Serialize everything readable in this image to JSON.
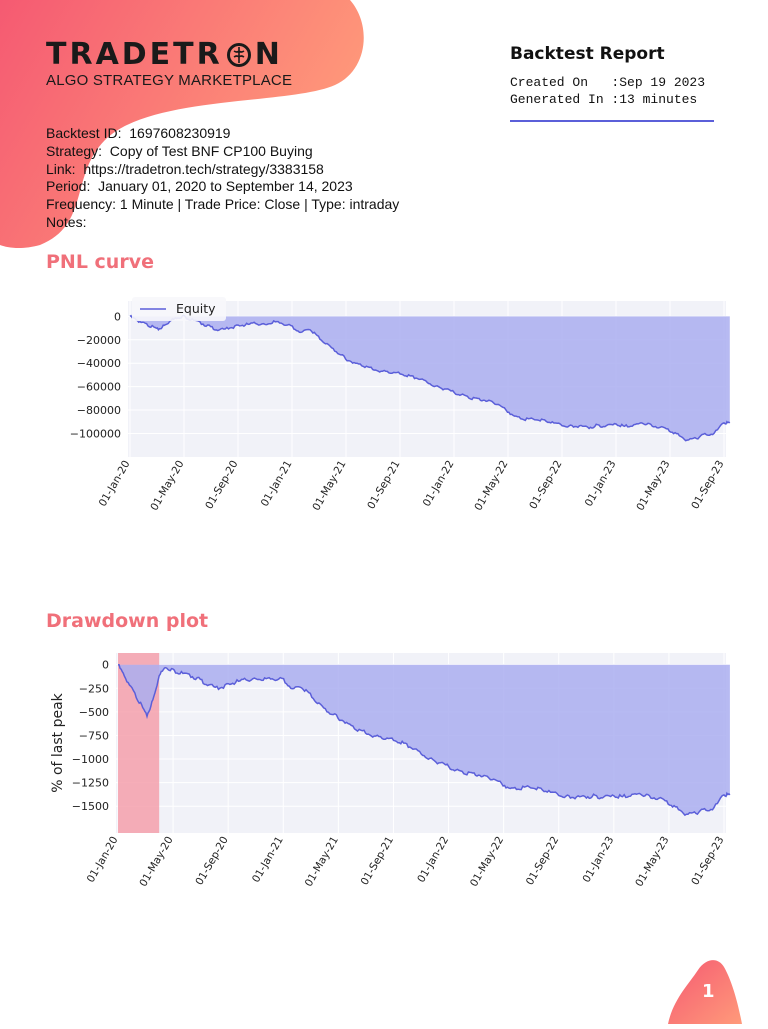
{
  "brand": {
    "logo_text_left": "TRADETR",
    "logo_text_right": "N",
    "tagline": "ALGO STRATEGY MARKETPLACE"
  },
  "report": {
    "title": "Backtest Report",
    "created_on_label": "Created On   ",
    "created_on_value": ":Sep 19 2023",
    "generated_in_label": "Generated In ",
    "generated_in_value": ":13 minutes"
  },
  "info": {
    "backtest_id": "Backtest ID:  1697608230919",
    "strategy": "Strategy:  Copy of Test BNF CP100 Buying",
    "link": "Link:  https://tradetron.tech/strategy/3383158",
    "period": "Period:  January 01, 2020 to September 14, 2023",
    "frequency": "Frequency: 1 Minute | Trade Price: Close | Type: intraday",
    "notes": "Notes:"
  },
  "sections": {
    "pnl_title": "PNL curve",
    "drawdown_title": "Drawdown plot"
  },
  "page": {
    "number": "1"
  },
  "colors": {
    "accent": "#f0707a",
    "line": "#5b5fd9",
    "fill": "#aaaef0",
    "grid_bg": "#f1f2f8",
    "drawdown_highlight": "#f4a0ab"
  },
  "chart_data": [
    {
      "type": "area",
      "title": "",
      "legend": [
        "Equity"
      ],
      "legend_placement": "top-left",
      "x_ticks": [
        "01-Jan-20",
        "01-May-20",
        "01-Sep-20",
        "01-Jan-21",
        "01-May-21",
        "01-Sep-21",
        "01-Jan-22",
        "01-May-22",
        "01-Sep-22",
        "01-Jan-23",
        "01-May-23",
        "01-Sep-23"
      ],
      "y_ticks": [
        "0",
        "−20000",
        "−40000",
        "−60000",
        "−80000",
        "−100000"
      ],
      "ylim": [
        -115000,
        8000
      ],
      "series": [
        {
          "name": "Equity",
          "x": [
            "2020-01-01",
            "2020-01-15",
            "2020-02-01",
            "2020-02-20",
            "2020-03-05",
            "2020-03-18",
            "2020-04-01",
            "2020-04-15",
            "2020-05-01",
            "2020-05-20",
            "2020-06-10",
            "2020-07-01",
            "2020-07-20",
            "2020-08-10",
            "2020-09-01",
            "2020-09-20",
            "2020-10-10",
            "2020-11-01",
            "2020-11-20",
            "2020-12-10",
            "2021-01-01",
            "2021-01-20",
            "2021-02-10",
            "2021-03-01",
            "2021-03-20",
            "2021-04-10",
            "2021-05-01",
            "2021-05-20",
            "2021-06-10",
            "2021-07-01",
            "2021-07-20",
            "2021-08-10",
            "2021-09-01",
            "2021-09-20",
            "2021-10-10",
            "2021-11-01",
            "2021-11-20",
            "2021-12-10",
            "2022-01-01",
            "2022-01-20",
            "2022-02-10",
            "2022-03-01",
            "2022-03-20",
            "2022-04-10",
            "2022-05-01",
            "2022-05-20",
            "2022-06-10",
            "2022-07-01",
            "2022-07-20",
            "2022-08-10",
            "2022-09-01",
            "2022-09-20",
            "2022-10-10",
            "2022-11-01",
            "2022-11-20",
            "2022-12-10",
            "2023-01-01",
            "2023-01-20",
            "2023-02-10",
            "2023-03-01",
            "2023-03-20",
            "2023-04-10",
            "2023-05-01",
            "2023-05-20",
            "2023-06-10",
            "2023-07-01",
            "2023-07-20",
            "2023-08-10",
            "2023-09-01",
            "2023-09-14"
          ],
          "y": [
            0,
            -3000,
            -6000,
            -9000,
            -11000,
            -8000,
            -4000,
            -1000,
            0,
            -3000,
            -6000,
            -9000,
            -12000,
            -10000,
            -8000,
            -7000,
            -6000,
            -7000,
            -5000,
            -6000,
            -9000,
            -14000,
            -11000,
            -18000,
            -24000,
            -30000,
            -36000,
            -40000,
            -42000,
            -45000,
            -47000,
            -48000,
            -49000,
            -51000,
            -53000,
            -56000,
            -60000,
            -62000,
            -65000,
            -67000,
            -70000,
            -71000,
            -72000,
            -75000,
            -81000,
            -86000,
            -88000,
            -88000,
            -89000,
            -91000,
            -93000,
            -94000,
            -94000,
            -95000,
            -93000,
            -94000,
            -92000,
            -94000,
            -93000,
            -91000,
            -93000,
            -95000,
            -97000,
            -101000,
            -106000,
            -104000,
            -101000,
            -100000,
            -91000,
            -91000
          ]
        }
      ]
    },
    {
      "type": "area",
      "title": "",
      "ylabel": "% of last peak",
      "x_ticks": [
        "01-Jan-20",
        "01-May-20",
        "01-Sep-20",
        "01-Jan-21",
        "01-May-21",
        "01-Sep-21",
        "01-Jan-22",
        "01-May-22",
        "01-Sep-22",
        "01-Jan-23",
        "01-May-23",
        "01-Sep-23"
      ],
      "y_ticks": [
        "0",
        "−250",
        "−500",
        "−750",
        "−1000",
        "−1250",
        "−1500"
      ],
      "ylim": [
        -1720,
        60
      ],
      "highlight_range": [
        "2020-01-01",
        "2020-04-01"
      ],
      "series": [
        {
          "name": "",
          "x": [
            "2020-01-01",
            "2020-01-15",
            "2020-02-01",
            "2020-02-20",
            "2020-03-05",
            "2020-03-18",
            "2020-04-01",
            "2020-04-15",
            "2020-05-01",
            "2020-05-20",
            "2020-06-10",
            "2020-07-01",
            "2020-07-20",
            "2020-08-10",
            "2020-09-01",
            "2020-09-20",
            "2020-10-10",
            "2020-11-01",
            "2020-11-20",
            "2020-12-10",
            "2021-01-01",
            "2021-01-20",
            "2021-02-10",
            "2021-03-01",
            "2021-03-20",
            "2021-04-10",
            "2021-05-01",
            "2021-05-20",
            "2021-06-10",
            "2021-07-01",
            "2021-07-20",
            "2021-08-10",
            "2021-09-01",
            "2021-09-20",
            "2021-10-10",
            "2021-11-01",
            "2021-11-20",
            "2021-12-10",
            "2022-01-01",
            "2022-01-20",
            "2022-02-10",
            "2022-03-01",
            "2022-03-20",
            "2022-04-10",
            "2022-05-01",
            "2022-05-20",
            "2022-06-10",
            "2022-07-01",
            "2022-07-20",
            "2022-08-10",
            "2022-09-01",
            "2022-09-20",
            "2022-10-10",
            "2022-11-01",
            "2022-11-20",
            "2022-12-10",
            "2023-01-01",
            "2023-01-20",
            "2023-02-10",
            "2023-03-01",
            "2023-03-20",
            "2023-04-10",
            "2023-05-01",
            "2023-05-20",
            "2023-06-10",
            "2023-07-01",
            "2023-07-20",
            "2023-08-10",
            "2023-09-01",
            "2023-09-14"
          ],
          "y": [
            0,
            -120,
            -260,
            -420,
            -540,
            -380,
            -120,
            -20,
            -60,
            -90,
            -120,
            -160,
            -220,
            -250,
            -210,
            -180,
            -160,
            -150,
            -160,
            -150,
            -160,
            -260,
            -240,
            -320,
            -420,
            -500,
            -560,
            -620,
            -680,
            -720,
            -760,
            -780,
            -800,
            -830,
            -880,
            -940,
            -1000,
            -1040,
            -1080,
            -1120,
            -1150,
            -1160,
            -1180,
            -1210,
            -1270,
            -1320,
            -1310,
            -1300,
            -1320,
            -1350,
            -1380,
            -1400,
            -1410,
            -1400,
            -1390,
            -1410,
            -1390,
            -1400,
            -1380,
            -1370,
            -1400,
            -1420,
            -1460,
            -1520,
            -1590,
            -1570,
            -1540,
            -1520,
            -1380,
            -1380
          ]
        }
      ]
    }
  ]
}
